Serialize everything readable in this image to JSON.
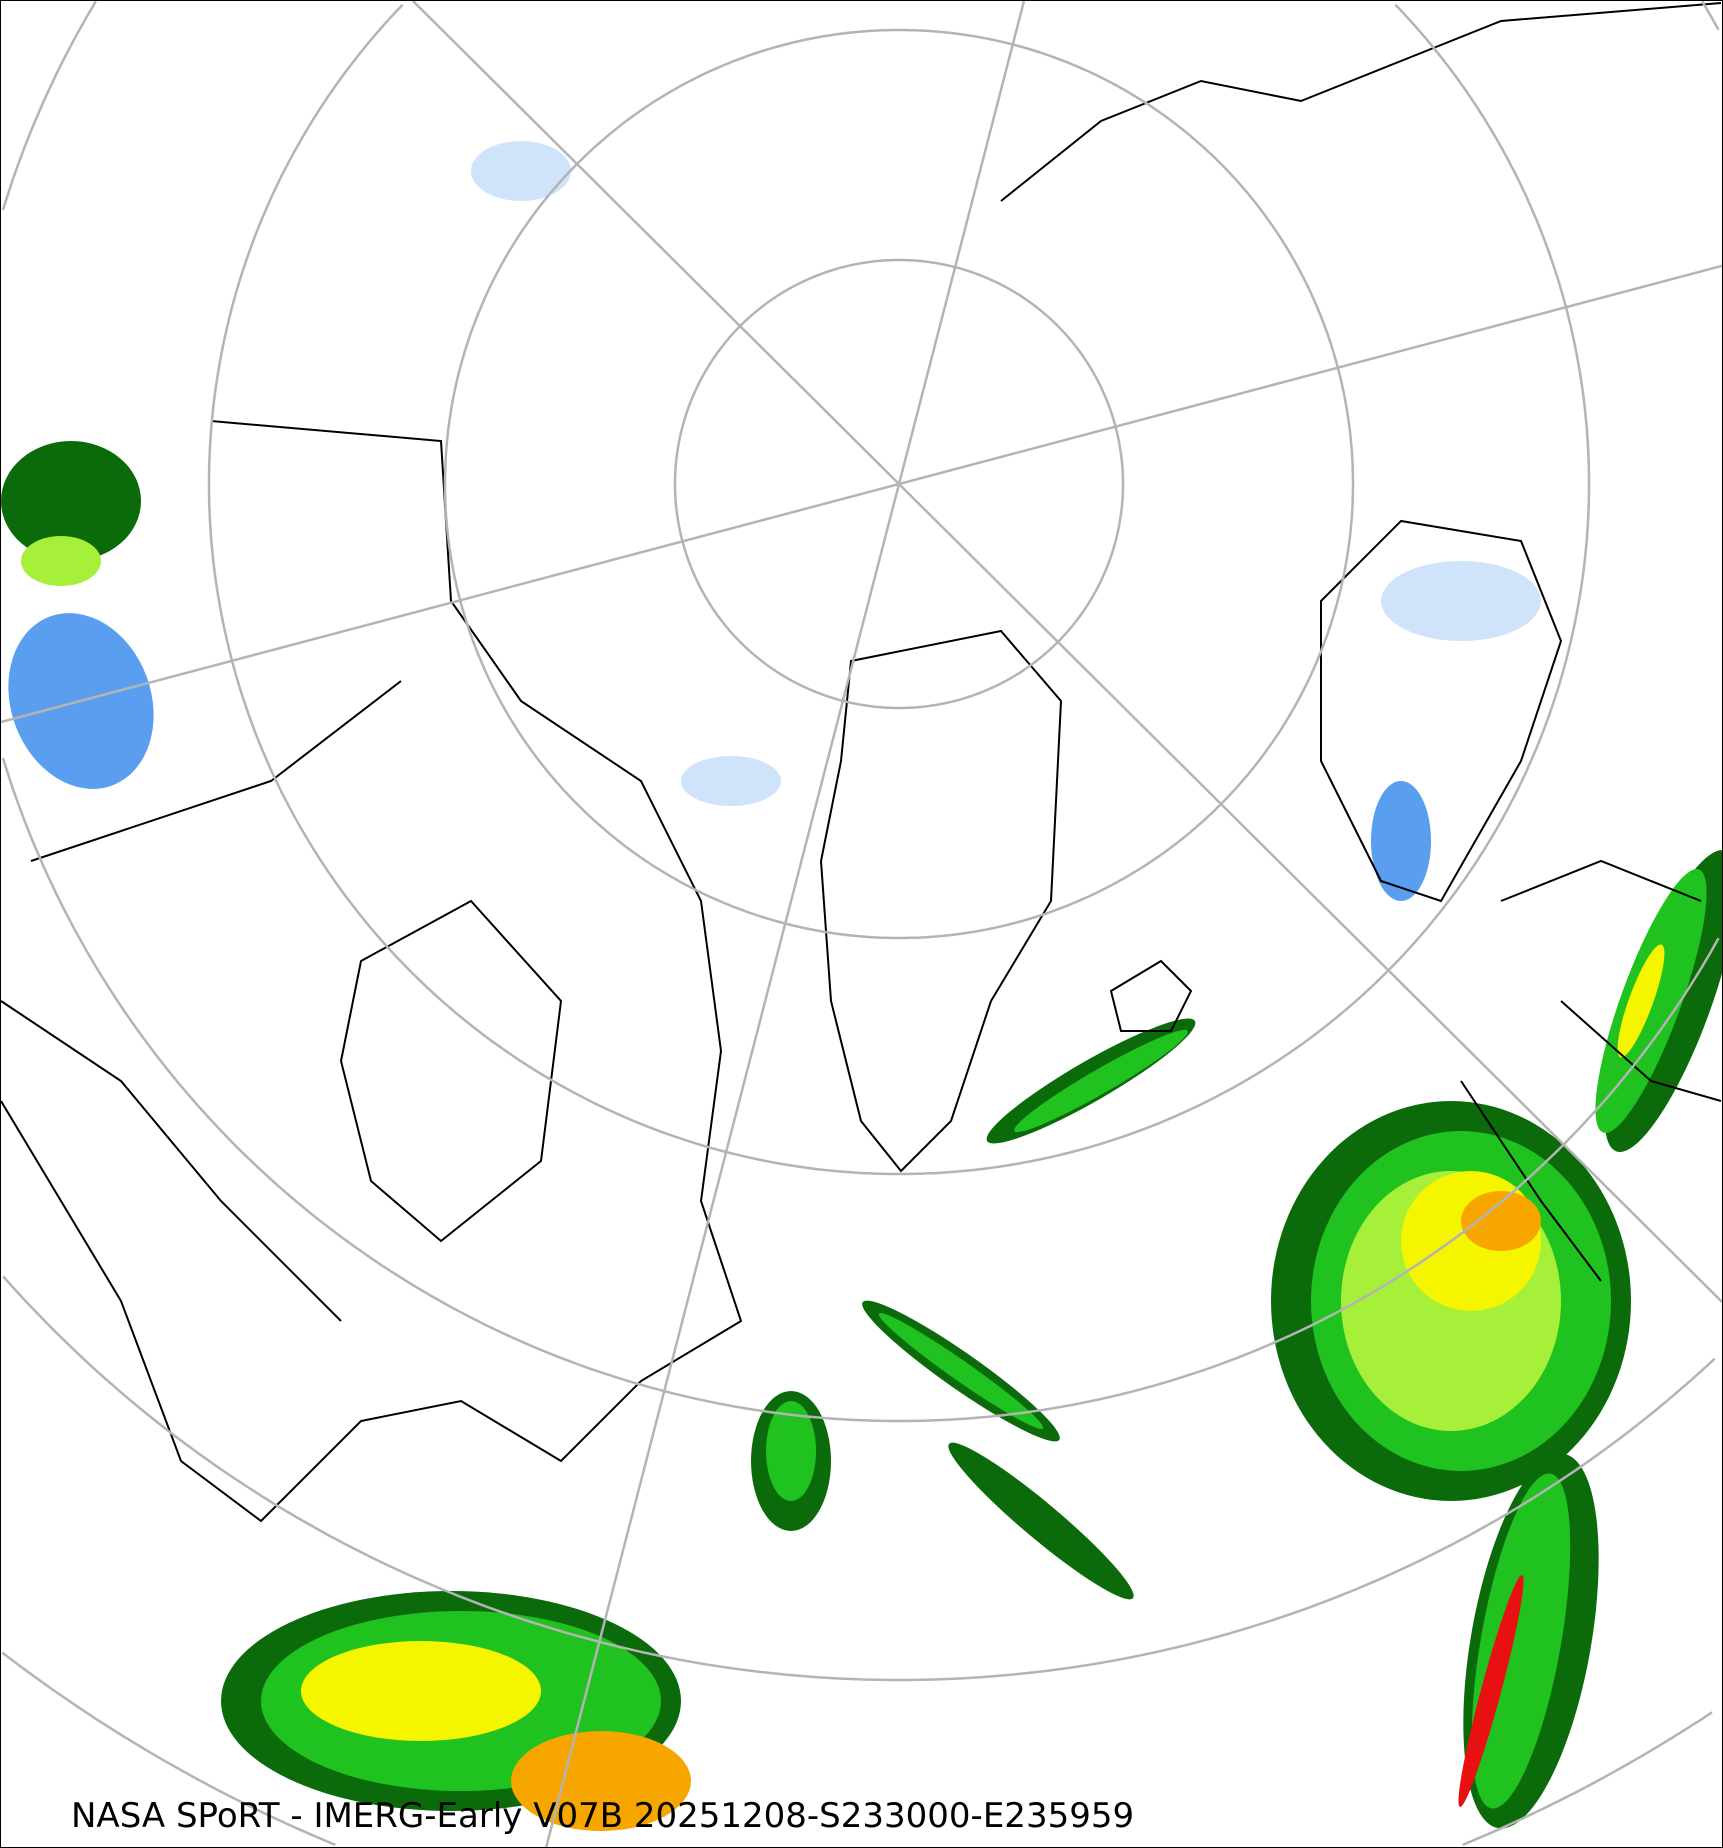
{
  "caption": "NASA SPoRT - IMERG-Early V07B 20251208-S233000-E235959",
  "map": {
    "projection": "north-polar-stereographic",
    "graticule_color": "#b4b4b4",
    "coastline_color": "#000000",
    "precip_colors": {
      "light_blue": "#cfe3fb",
      "blue": "#5a9ef0",
      "dark_green": "#0b6b0b",
      "green": "#1fc21f",
      "light_green": "#a6f03a",
      "yellow": "#f5f500",
      "orange": "#f7a600",
      "red": "#e81010",
      "magenta": "#e040e0"
    }
  }
}
